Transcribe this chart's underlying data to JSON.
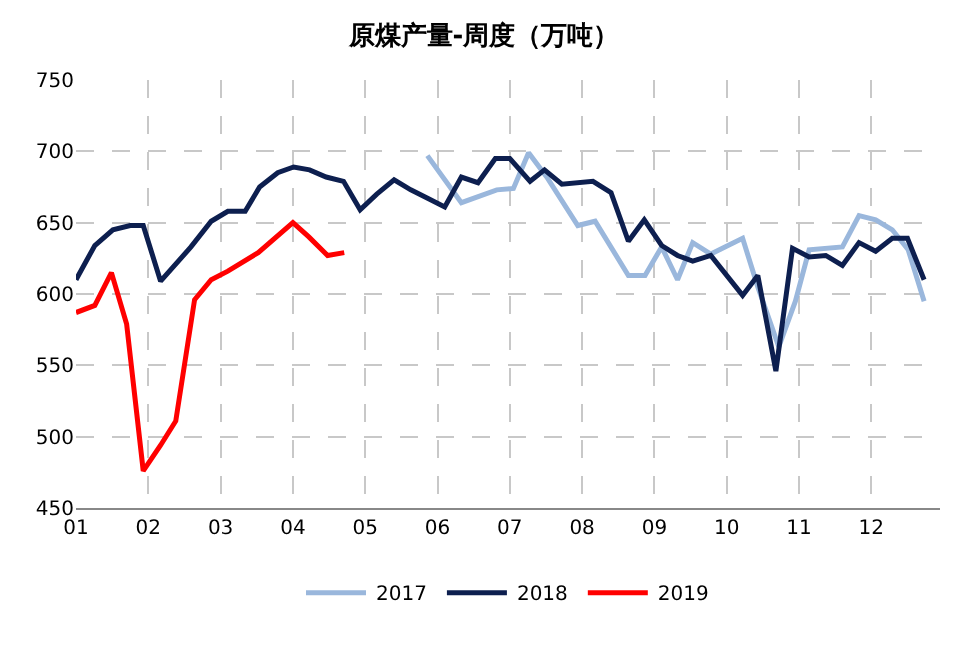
{
  "chart_data": {
    "type": "line",
    "title": "原煤产量-周度（万吨）",
    "xlim": [
      1,
      12.95
    ],
    "xticks": [
      {
        "value": 1,
        "label": "01"
      },
      {
        "value": 2,
        "label": "02"
      },
      {
        "value": 3,
        "label": "03"
      },
      {
        "value": 4,
        "label": "04"
      },
      {
        "value": 5,
        "label": "05"
      },
      {
        "value": 6,
        "label": "06"
      },
      {
        "value": 7,
        "label": "07"
      },
      {
        "value": 8,
        "label": "08"
      },
      {
        "value": 9,
        "label": "09"
      },
      {
        "value": 10,
        "label": "10"
      },
      {
        "value": 11,
        "label": "11"
      },
      {
        "value": 12,
        "label": "12"
      }
    ],
    "ylim": [
      450,
      750
    ],
    "yticks": [
      450,
      500,
      550,
      600,
      650,
      700,
      750
    ],
    "grid": true,
    "legend": "bottom",
    "marker": "none",
    "line_style": "solid",
    "series": [
      {
        "name": "2017",
        "color": "#9ab7dc",
        "x": [
          5.86,
          6.33,
          6.82,
          7.05,
          7.26,
          7.51,
          7.94,
          8.18,
          8.64,
          8.87,
          9.1,
          9.32,
          9.53,
          9.78,
          10.22,
          10.43,
          10.72,
          10.95,
          11.14,
          11.6,
          11.83,
          12.06,
          12.29,
          12.51,
          12.73
        ],
        "values": [
          697,
          664,
          673,
          674,
          699,
          682,
          648,
          651,
          613,
          613,
          633,
          610,
          636,
          628,
          639,
          605,
          563,
          595,
          631,
          633,
          655,
          652,
          645,
          631,
          595
        ]
      },
      {
        "name": "2018",
        "color": "#0d1f4f",
        "x": [
          1.0,
          1.26,
          1.51,
          1.75,
          1.93,
          2.17,
          2.59,
          2.87,
          3.1,
          3.34,
          3.54,
          3.79,
          4.01,
          4.23,
          4.46,
          4.7,
          4.93,
          5.16,
          5.4,
          5.63,
          5.87,
          6.1,
          6.33,
          6.56,
          6.8,
          7.0,
          7.28,
          7.48,
          7.72,
          8.15,
          8.4,
          8.64,
          8.86,
          9.1,
          9.32,
          9.53,
          9.78,
          10.22,
          10.43,
          10.68,
          10.91,
          11.14,
          11.37,
          11.6,
          11.83,
          12.06,
          12.29,
          12.5,
          12.73
        ],
        "values": [
          610,
          634,
          645,
          648,
          648,
          609,
          633,
          651,
          658,
          658,
          675,
          685,
          689,
          687,
          682,
          679,
          659,
          670,
          680,
          673,
          667,
          661,
          682,
          678,
          695,
          695,
          679,
          687,
          677,
          679,
          671,
          637,
          652,
          634,
          627,
          623,
          627,
          599,
          613,
          546,
          632,
          626,
          627,
          620,
          636,
          630,
          639,
          639,
          610
        ]
      },
      {
        "name": "2019",
        "color": "#ff0000",
        "x": [
          1.0,
          1.26,
          1.49,
          1.7,
          1.93,
          2.17,
          2.38,
          2.64,
          2.87,
          3.1,
          3.52,
          4.0,
          4.22,
          4.48,
          4.71
        ],
        "values": [
          587,
          592,
          615,
          579,
          476,
          494,
          511,
          596,
          610,
          616,
          629,
          650,
          640,
          627,
          629
        ]
      }
    ]
  }
}
